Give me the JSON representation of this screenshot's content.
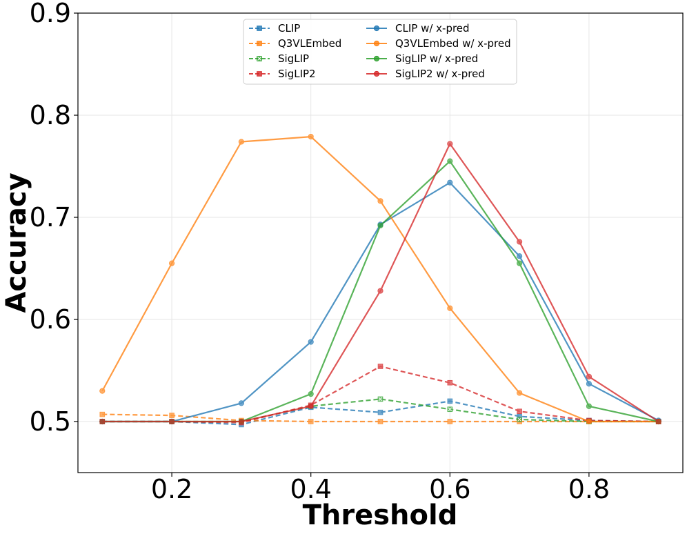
{
  "chart_data": {
    "type": "line",
    "title": "",
    "xlabel": "Threshold",
    "ylabel": "Accuracy",
    "xlim": [
      0.065,
      0.935
    ],
    "ylim": [
      0.45,
      0.9
    ],
    "x": [
      0.1,
      0.2,
      0.3,
      0.4,
      0.5,
      0.6,
      0.7,
      0.8,
      0.9
    ],
    "xticks": [
      0.2,
      0.4,
      0.6,
      0.8
    ],
    "xtick_labels": [
      "0.2",
      "0.4",
      "0.6",
      "0.8"
    ],
    "yticks": [
      0.5,
      0.6,
      0.7,
      0.8,
      0.9
    ],
    "ytick_labels": [
      "0.5",
      "0.6",
      "0.7",
      "0.8",
      "0.9"
    ],
    "grid": true,
    "legend_position": "top-center",
    "series": [
      {
        "name": "CLIP",
        "color": "#1f77b4",
        "style": "dashed",
        "marker": "square",
        "values": [
          0.5,
          0.5,
          0.497,
          0.514,
          0.509,
          0.52,
          0.505,
          0.501,
          0.5
        ]
      },
      {
        "name": "Q3VLEmbed",
        "color": "#ff7f0e",
        "style": "dashed",
        "marker": "square",
        "values": [
          0.507,
          0.506,
          0.501,
          0.5,
          0.5,
          0.5,
          0.5,
          0.5,
          0.5
        ]
      },
      {
        "name": "SigLIP",
        "color": "#2ca02c",
        "style": "dashed",
        "marker": "x-square",
        "values": [
          0.5,
          0.5,
          0.5,
          0.515,
          0.522,
          0.512,
          0.502,
          0.5,
          0.5
        ]
      },
      {
        "name": "SigLIP2",
        "color": "#d62728",
        "style": "dashed",
        "marker": "square",
        "values": [
          0.5,
          0.5,
          0.499,
          0.516,
          0.554,
          0.538,
          0.51,
          0.501,
          0.5
        ]
      },
      {
        "name": "CLIP w/ x-pred",
        "color": "#1f77b4",
        "style": "solid",
        "marker": "circle",
        "values": [
          0.5,
          0.5,
          0.518,
          0.578,
          0.693,
          0.734,
          0.662,
          0.537,
          0.501
        ]
      },
      {
        "name": "Q3VLEmbed w/ x-pred",
        "color": "#ff7f0e",
        "style": "solid",
        "marker": "circle",
        "values": [
          0.53,
          0.655,
          0.774,
          0.779,
          0.716,
          0.611,
          0.528,
          0.5,
          0.5
        ]
      },
      {
        "name": "SigLIP w/ x-pred",
        "color": "#2ca02c",
        "style": "solid",
        "marker": "circle",
        "values": [
          0.5,
          0.5,
          0.5,
          0.527,
          0.692,
          0.755,
          0.655,
          0.515,
          0.5
        ]
      },
      {
        "name": "SigLIP2 w/ x-pred",
        "color": "#d62728",
        "style": "solid",
        "marker": "circle",
        "values": [
          0.5,
          0.5,
          0.5,
          0.515,
          0.628,
          0.772,
          0.676,
          0.544,
          0.5
        ]
      }
    ]
  }
}
